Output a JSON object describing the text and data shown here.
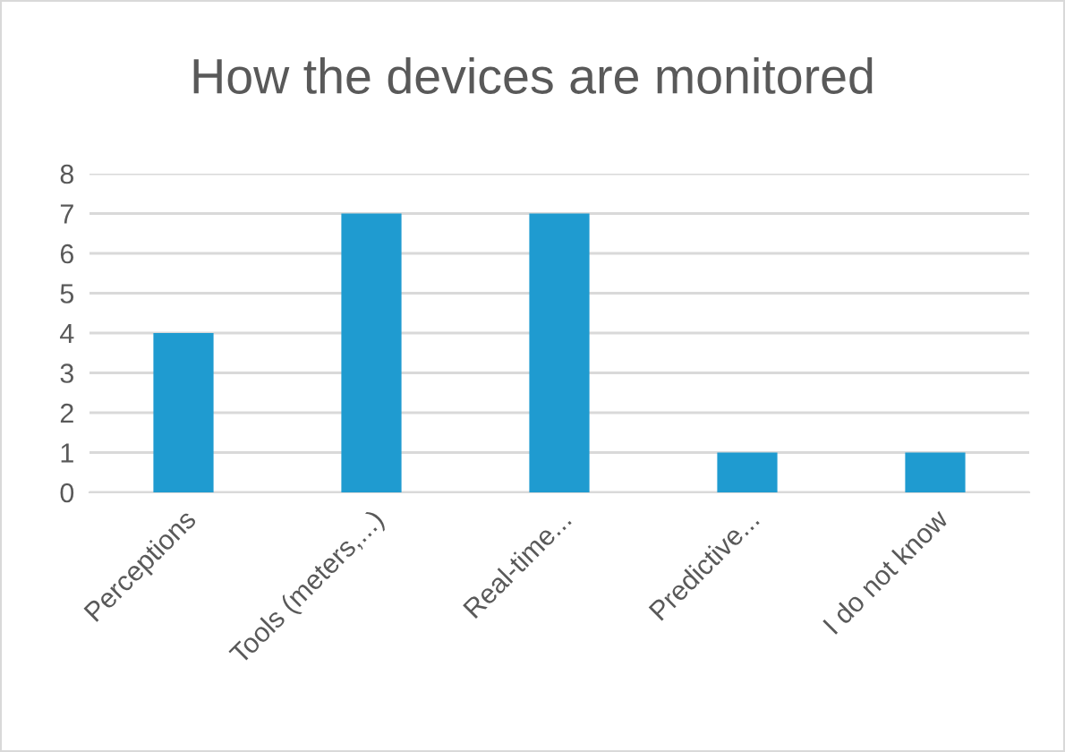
{
  "chart_data": {
    "type": "bar",
    "title": "How the devices are monitored",
    "categories": [
      "Perceptions",
      "Tools (meters,...)",
      "Real-time...",
      "Predictive...",
      "I do not know"
    ],
    "values": [
      4,
      7,
      7,
      1,
      1
    ],
    "color": "#1f9bd0",
    "ylim": [
      0,
      8
    ],
    "yticks": [
      0,
      1,
      2,
      3,
      4,
      5,
      6,
      7,
      8
    ],
    "grid": "y"
  }
}
